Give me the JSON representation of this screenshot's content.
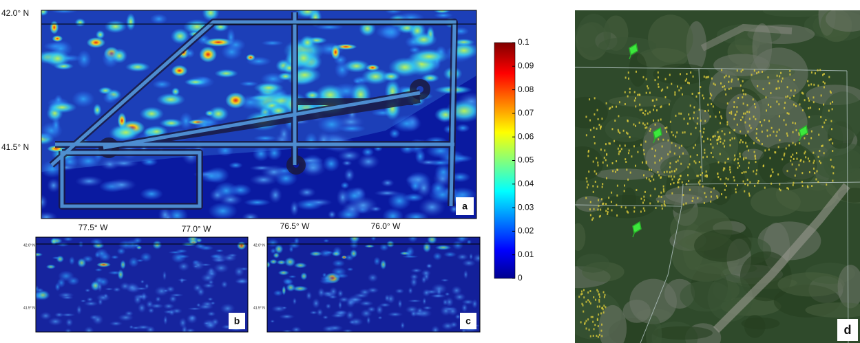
{
  "panels": [
    {
      "label": "a",
      "x_labels": [
        "77.5° W",
        "77.0° W",
        "76.5° W",
        "76.0° W"
      ],
      "y_labels": [
        "42.0° N",
        "41.5° N"
      ]
    },
    {
      "label": "b",
      "y_labels": [
        "42.0° N",
        "41.5° N"
      ]
    },
    {
      "label": "c",
      "y_labels": [
        "42.0° N",
        "41.5° N"
      ]
    },
    {
      "label": "d"
    }
  ],
  "colorbar": {
    "lim": [
      0,
      0.1
    ],
    "ticks": [
      0.1,
      0.09,
      0.08,
      0.07,
      0.06,
      0.05,
      0.04,
      0.03,
      0.02,
      0.01,
      0
    ]
  }
}
